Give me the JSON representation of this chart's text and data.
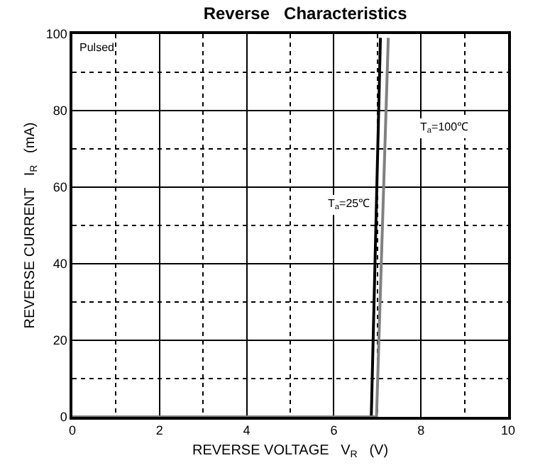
{
  "chart_data": {
    "type": "line",
    "title": "Reverse   Characteristics",
    "xlabel": "REVERSE VOLTAGE   V$_{R}$   (V)",
    "ylabel": "REVERSE CURRENT   I$_{R}$   (mA)",
    "series": [
      {
        "color": "#000000",
        "x": [
          0,
          6.86,
          7.07
        ],
        "values": [
          0,
          0,
          99
        ]
      },
      {
        "color": "#808080",
        "x": [
          0,
          6.98,
          7.25
        ],
        "values": [
          0,
          0,
          99
        ]
      }
    ],
    "xlim": [
      0,
      10
    ],
    "xticks": [
      0,
      2,
      4,
      6,
      8,
      10
    ],
    "ylim": [
      0,
      100
    ],
    "yticks": [
      0,
      20,
      40,
      60,
      80,
      100
    ],
    "grid": true,
    "marker": "none",
    "line_style": "solid",
    "annotations": [
      "Pulsed",
      "T$_{a}$=25℃",
      "T$_{a}$=100℃"
    ]
  }
}
